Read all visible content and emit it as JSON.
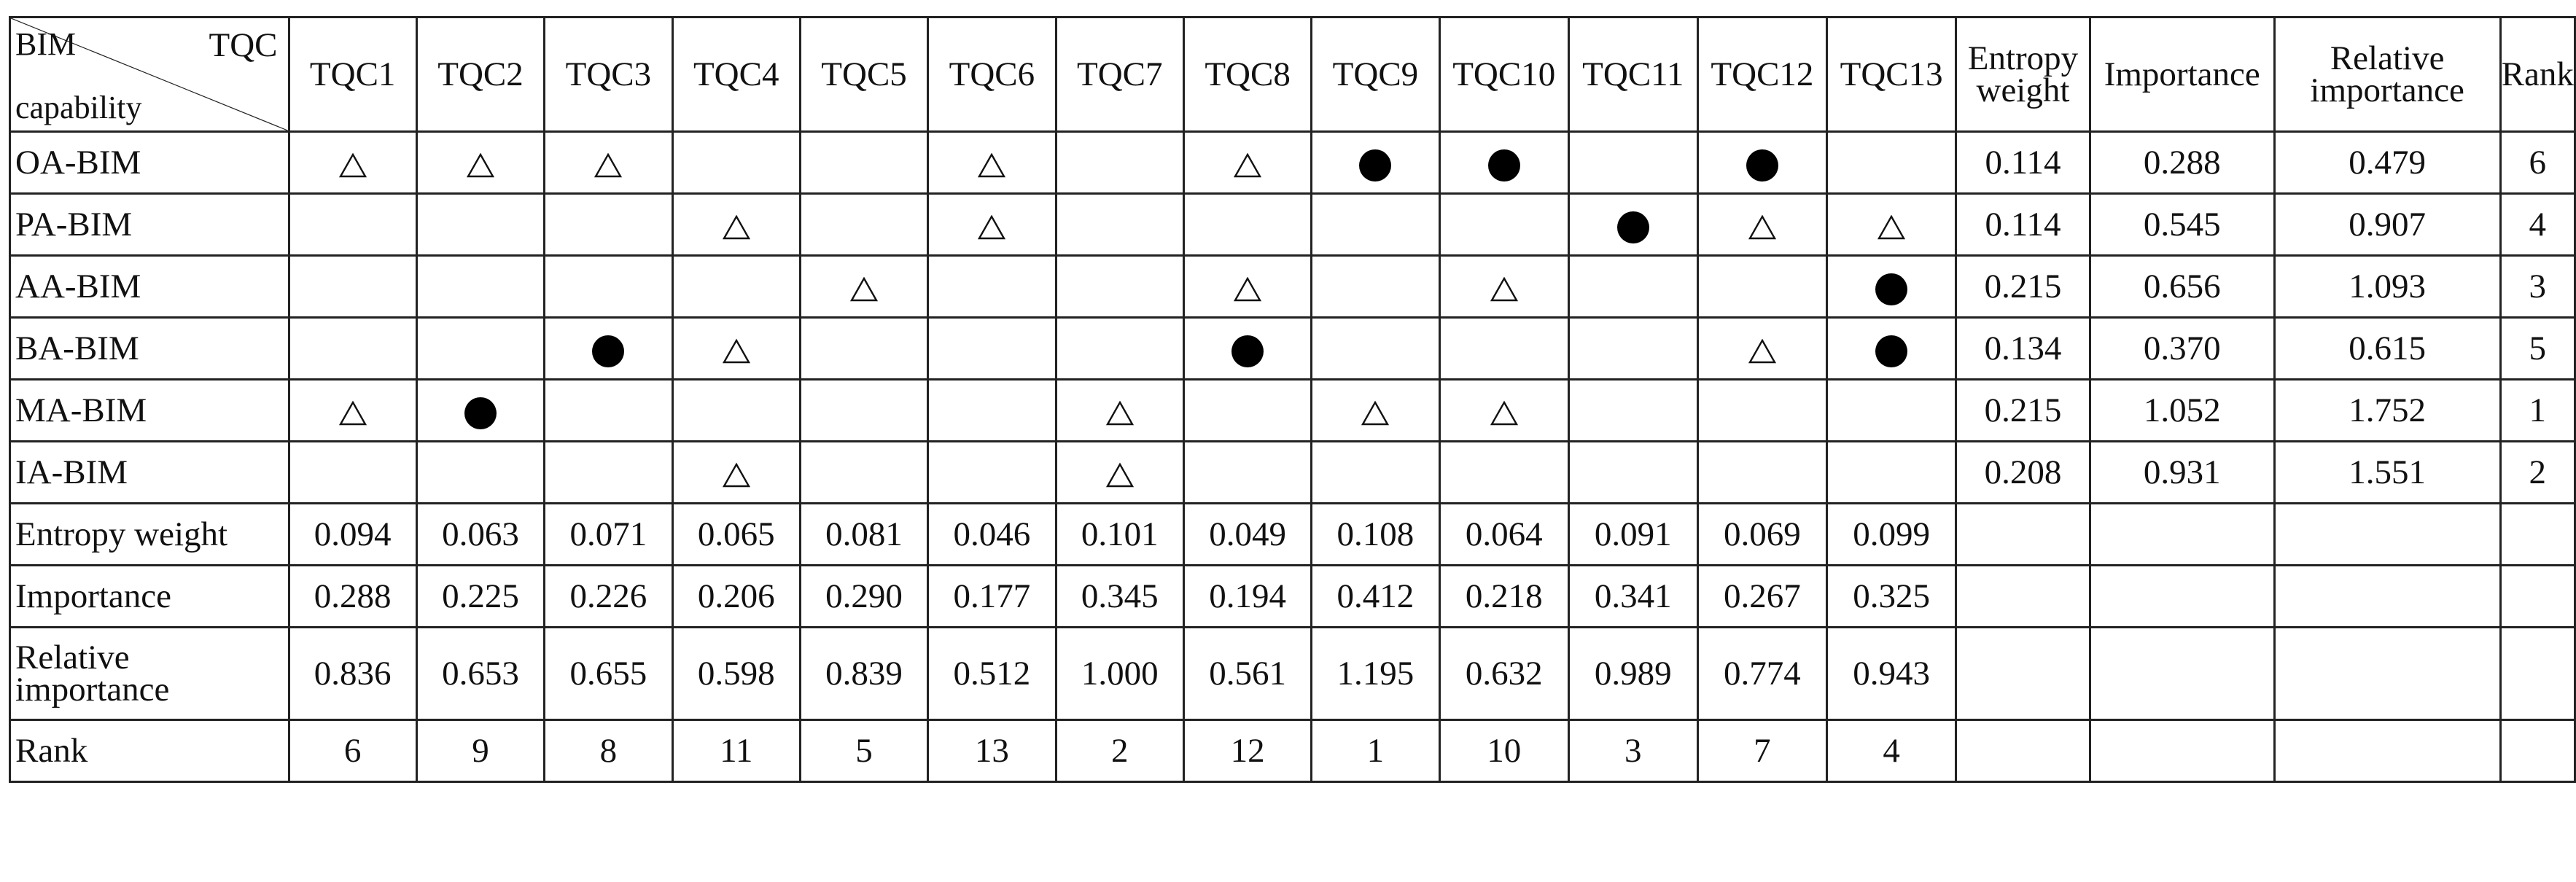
{
  "table": {
    "corner": {
      "top_left": "BIM",
      "top_right": "TQC",
      "bottom_left": "capability"
    },
    "tqc_headers": [
      "TQC1",
      "TQC2",
      "TQC3",
      "TQC4",
      "TQC5",
      "TQC6",
      "TQC7",
      "TQC8",
      "TQC9",
      "TQC10",
      "TQC11",
      "TQC12",
      "TQC13"
    ],
    "right_headers": {
      "entropy_weight": "Entropy weight",
      "importance": "Importance",
      "relative_importance": "Relative importance",
      "rank": "Rank"
    },
    "legend_symbols": {
      "triangle": "△",
      "dot": "●"
    },
    "rows": [
      {
        "label": "OA-BIM",
        "cells": [
          "tri",
          "tri",
          "tri",
          "",
          "",
          "tri",
          "",
          "tri",
          "dot",
          "dot",
          "",
          "dot",
          ""
        ],
        "entropy_weight": "0.114",
        "importance": "0.288",
        "relative_importance": "0.479",
        "rank": "6"
      },
      {
        "label": "PA-BIM",
        "cells": [
          "",
          "",
          "",
          "tri",
          "",
          "tri",
          "",
          "",
          "",
          "",
          "dot",
          "tri",
          "tri"
        ],
        "entropy_weight": "0.114",
        "importance": "0.545",
        "relative_importance": "0.907",
        "rank": "4"
      },
      {
        "label": "AA-BIM",
        "cells": [
          "",
          "",
          "",
          "",
          "tri",
          "",
          "",
          "tri",
          "",
          "tri",
          "",
          "",
          "dot"
        ],
        "entropy_weight": "0.215",
        "importance": "0.656",
        "relative_importance": "1.093",
        "rank": "3"
      },
      {
        "label": "BA-BIM",
        "cells": [
          "",
          "",
          "dot",
          "tri",
          "",
          "",
          "",
          "dot",
          "",
          "",
          "",
          "tri",
          "dot"
        ],
        "entropy_weight": "0.134",
        "importance": "0.370",
        "relative_importance": "0.615",
        "rank": "5"
      },
      {
        "label": "MA-BIM",
        "cells": [
          "tri",
          "dot",
          "",
          "",
          "",
          "",
          "tri",
          "",
          "tri",
          "tri",
          "",
          "",
          ""
        ],
        "entropy_weight": "0.215",
        "importance": "1.052",
        "relative_importance": "1.752",
        "rank": "1"
      },
      {
        "label": "IA-BIM",
        "cells": [
          "",
          "",
          "",
          "tri",
          "",
          "",
          "tri",
          "",
          "",
          "",
          "",
          "",
          ""
        ],
        "entropy_weight": "0.208",
        "importance": "0.931",
        "relative_importance": "1.551",
        "rank": "2"
      }
    ],
    "footer_rows": [
      {
        "label": "Entropy weight",
        "values": [
          "0.094",
          "0.063",
          "0.071",
          "0.065",
          "0.081",
          "0.046",
          "0.101",
          "0.049",
          "0.108",
          "0.064",
          "0.091",
          "0.069",
          "0.099"
        ]
      },
      {
        "label": "Importance",
        "values": [
          "0.288",
          "0.225",
          "0.226",
          "0.206",
          "0.290",
          "0.177",
          "0.345",
          "0.194",
          "0.412",
          "0.218",
          "0.341",
          "0.267",
          "0.325"
        ]
      },
      {
        "label": "Relative importance",
        "values": [
          "0.836",
          "0.653",
          "0.655",
          "0.598",
          "0.839",
          "0.512",
          "1.000",
          "0.561",
          "1.195",
          "0.632",
          "0.989",
          "0.774",
          "0.943"
        ]
      },
      {
        "label": "Rank",
        "values": [
          "6",
          "9",
          "8",
          "11",
          "5",
          "13",
          "2",
          "12",
          "1",
          "10",
          "3",
          "7",
          "4"
        ]
      }
    ]
  }
}
